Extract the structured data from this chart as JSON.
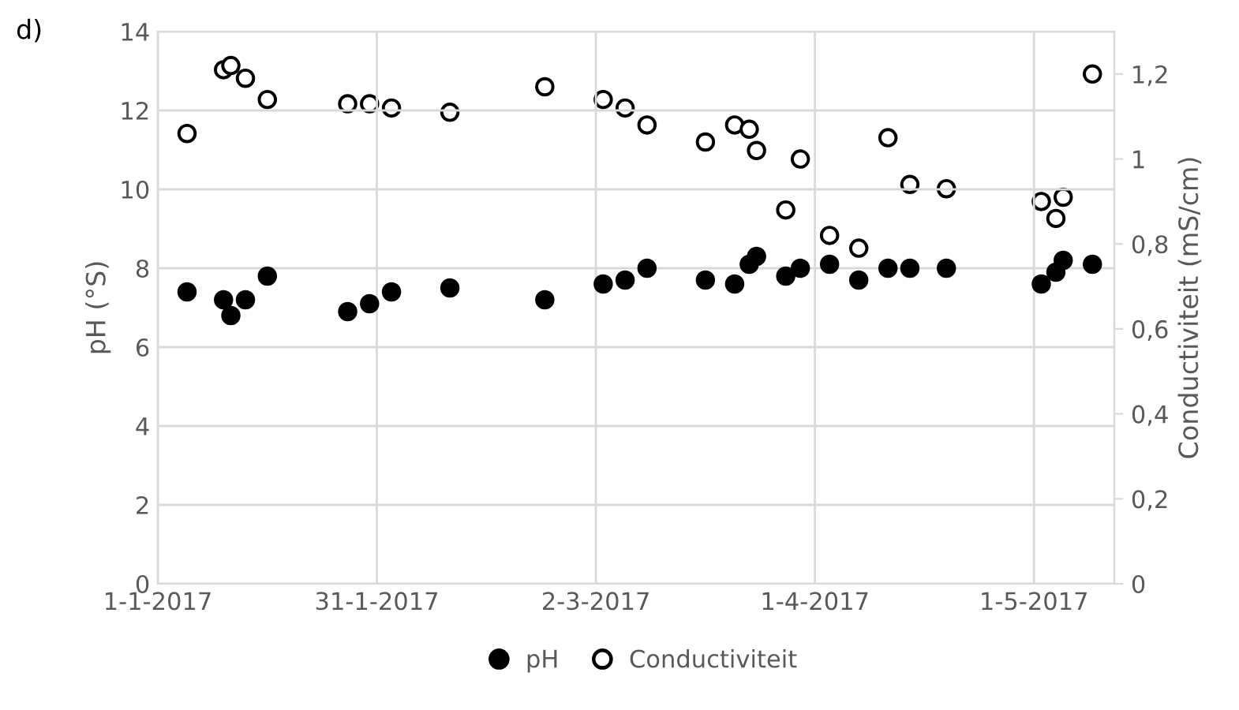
{
  "chart_data": {
    "type": "scatter",
    "title": "d)",
    "ylabel": "pH (°S)",
    "y2label": "Conductiviteit (mS/cm)",
    "xlim": [
      "2017-01-01",
      "2017-05-12"
    ],
    "xticks": [
      {
        "value": "2017-01-01",
        "label": "1-1-2017"
      },
      {
        "value": "2017-01-31",
        "label": "31-1-2017"
      },
      {
        "value": "2017-03-02",
        "label": "2-3-2017"
      },
      {
        "value": "2017-04-01",
        "label": "1-4-2017"
      },
      {
        "value": "2017-05-01",
        "label": "1-5-2017"
      }
    ],
    "ylim": [
      0,
      14
    ],
    "yticks": [
      0,
      2,
      4,
      6,
      8,
      10,
      12,
      14
    ],
    "y2lim": [
      0,
      1.3
    ],
    "y2ticks": [
      0,
      {
        "value": 0.2,
        "label": "0,2"
      },
      {
        "value": 0.4,
        "label": "0,4"
      },
      {
        "value": 0.6,
        "label": "0,6"
      },
      {
        "value": 0.8,
        "label": "0,8"
      },
      1,
      {
        "value": 1.2,
        "label": "1,2"
      }
    ],
    "grid": true,
    "legend": "bottom",
    "marker": "circle",
    "x": [
      "2017-01-05",
      "2017-01-10",
      "2017-01-11",
      "2017-01-13",
      "2017-01-16",
      "2017-01-27",
      "2017-01-30",
      "2017-02-02",
      "2017-02-10",
      "2017-02-23",
      "2017-03-03",
      "2017-03-06",
      "2017-03-09",
      "2017-03-17",
      "2017-03-21",
      "2017-03-23",
      "2017-03-24",
      "2017-03-28",
      "2017-03-30",
      "2017-04-03",
      "2017-04-07",
      "2017-04-11",
      "2017-04-14",
      "2017-04-19",
      "2017-05-02",
      "2017-05-04",
      "2017-05-05",
      "2017-05-09"
    ],
    "series": [
      {
        "name": "pH",
        "color": "#000000",
        "values": [
          7.4,
          7.2,
          6.8,
          7.2,
          7.8,
          6.9,
          7.1,
          7.4,
          7.5,
          7.2,
          7.6,
          7.7,
          8.0,
          7.7,
          7.6,
          8.1,
          8.3,
          7.8,
          8.0,
          8.1,
          7.7,
          8.0,
          8.0,
          8.0,
          7.6,
          7.9,
          8.2,
          8.1
        ]
      },
      {
        "name": "Conductiviteit",
        "color": "#000000",
        "axis": "y2",
        "values": [
          1.06,
          1.21,
          1.22,
          1.19,
          1.14,
          1.13,
          1.13,
          1.12,
          1.11,
          1.17,
          1.14,
          1.12,
          1.08,
          1.04,
          1.08,
          1.07,
          1.02,
          0.88,
          1.0,
          0.82,
          0.79,
          1.05,
          0.94,
          0.93,
          0.9,
          0.86,
          0.91,
          1.2
        ]
      }
    ]
  }
}
